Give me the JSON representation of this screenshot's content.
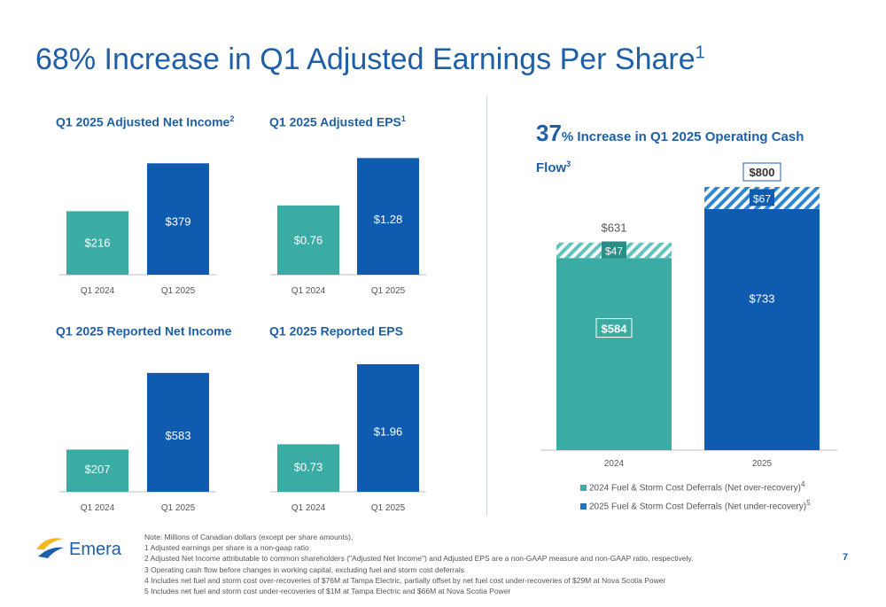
{
  "page": {
    "title": "68% Increase in Q1 Adjusted Earnings Per Share",
    "title_sup": "1",
    "page_number": "7",
    "logo_text": "Emera"
  },
  "panels": [
    {
      "title": "Q1 2025 Adjusted Net Income",
      "sup": "2"
    },
    {
      "title": "Q1 2025 Adjusted EPS",
      "sup": "1"
    },
    {
      "title": "Q1 2025 Reported Net Income",
      "sup": ""
    },
    {
      "title": "Q1 2025 Reported EPS",
      "sup": ""
    }
  ],
  "right_panel": {
    "title_big": "37",
    "title_pct": "%",
    "title_rest": " Increase in Q1 2025 Operating Cash Flow",
    "title_sup": "3",
    "legend": [
      {
        "label": "2024 Fuel & Storm Cost Deferrals (Net over-recovery)",
        "sup": "4"
      },
      {
        "label": "2025 Fuel & Storm Cost Deferrals (Net under-recovery)",
        "sup": "5"
      }
    ]
  },
  "notes": [
    "Note: Millions of Canadian dollars (except per share amounts),",
    "1 Adjusted earnings per share is a non-gaap ratio",
    "2 Adjusted Net Income attributable to common shareholders (\"Adjusted Net Income\") and Adjusted EPS are a non-GAAP measure and non-GAAP ratio, respectively.",
    "3 Operating cash flow before changes in working capital, excluding fuel and storm cost deferrals",
    "4 Includes net fuel and storm cost over-recoveries of $76M at Tampa Electric, partially offset by net fuel cost under-recoveries of $29M at Nova Scotia Power",
    "5 Includes net fuel and storm cost under-recoveries of $1M at Tampa Electric and $66M at Nova Scotia Power"
  ],
  "colors": {
    "teal": "#3aaca4",
    "blue": "#0f5bb0",
    "title_blue": "#1f5fa8",
    "hatch_teal": "#5fc4bd",
    "hatch_blue": "#2f86d0"
  },
  "chart_data": [
    {
      "type": "bar",
      "title": "Q1 2025 Adjusted Net Income",
      "categories": [
        "Q1 2024",
        "Q1 2025"
      ],
      "values": [
        216,
        379
      ],
      "labels": [
        "$216",
        "$379"
      ],
      "ylim": [
        0,
        410
      ]
    },
    {
      "type": "bar",
      "title": "Q1 2025 Adjusted EPS",
      "categories": [
        "Q1 2024",
        "Q1 2025"
      ],
      "values": [
        0.76,
        1.28
      ],
      "labels": [
        "$0.76",
        "$1.28"
      ],
      "ylim": [
        0,
        1.4
      ]
    },
    {
      "type": "bar",
      "title": "Q1 2025 Reported Net Income",
      "categories": [
        "Q1 2024",
        "Q1 2025"
      ],
      "values": [
        207,
        583
      ],
      "labels": [
        "$207",
        "$583"
      ],
      "ylim": [
        0,
        630
      ]
    },
    {
      "type": "bar",
      "title": "Q1 2025 Reported EPS",
      "categories": [
        "Q1 2024",
        "Q1 2025"
      ],
      "values": [
        0.73,
        1.96
      ],
      "labels": [
        "$0.73",
        "$1.96"
      ],
      "ylim": [
        0,
        2.11
      ]
    },
    {
      "type": "bar",
      "stacked": true,
      "title": "37% Increase in Q1 2025 Operating Cash Flow",
      "categories": [
        "2024",
        "2025"
      ],
      "series": [
        {
          "name": "Operating Cash Flow",
          "values": [
            584,
            733
          ],
          "labels": [
            "$584",
            "$733"
          ]
        },
        {
          "name": "Fuel & Storm Cost Deferrals",
          "values": [
            47,
            67
          ],
          "labels": [
            "$47",
            "$67"
          ]
        }
      ],
      "totals": [
        631,
        800
      ],
      "total_labels": [
        "$631",
        "$800"
      ],
      "ylim": [
        0,
        800
      ]
    }
  ]
}
